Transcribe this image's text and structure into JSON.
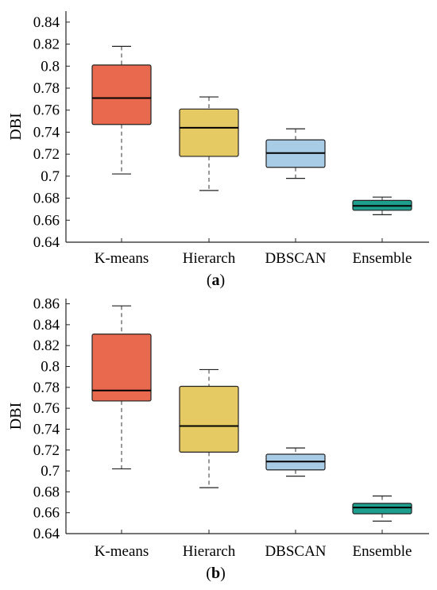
{
  "chart_data": [
    {
      "type": "box",
      "caption_letter": "a",
      "ylabel": "DBI",
      "ylim": [
        0.64,
        0.85
      ],
      "yticks": [
        0.64,
        0.66,
        0.68,
        0.7,
        0.72,
        0.74,
        0.76,
        0.78,
        0.8,
        0.82,
        0.84
      ],
      "categories": [
        "K-means",
        "Hierarch",
        "DBSCAN",
        "Ensemble"
      ],
      "boxes": [
        {
          "label": "K-means",
          "whisker_low": 0.702,
          "q1": 0.747,
          "median": 0.771,
          "q3": 0.801,
          "whisker_high": 0.818,
          "color": "#E8694E"
        },
        {
          "label": "Hierarch",
          "whisker_low": 0.687,
          "q1": 0.718,
          "median": 0.744,
          "q3": 0.761,
          "whisker_high": 0.772,
          "color": "#E5CA64"
        },
        {
          "label": "DBSCAN",
          "whisker_low": 0.698,
          "q1": 0.708,
          "median": 0.721,
          "q3": 0.733,
          "whisker_high": 0.743,
          "color": "#A8CCE6"
        },
        {
          "label": "Ensemble",
          "whisker_low": 0.665,
          "q1": 0.669,
          "median": 0.673,
          "q3": 0.678,
          "whisker_high": 0.681,
          "color": "#1E9E8C"
        }
      ]
    },
    {
      "type": "box",
      "caption_letter": "b",
      "ylabel": "DBI",
      "ylim": [
        0.64,
        0.865
      ],
      "yticks": [
        0.64,
        0.66,
        0.68,
        0.7,
        0.72,
        0.74,
        0.76,
        0.78,
        0.8,
        0.82,
        0.84,
        0.86
      ],
      "categories": [
        "K-means",
        "Hierarch",
        "DBSCAN",
        "Ensemble"
      ],
      "boxes": [
        {
          "label": "K-means",
          "whisker_low": 0.702,
          "q1": 0.767,
          "median": 0.777,
          "q3": 0.831,
          "whisker_high": 0.858,
          "color": "#E8694E"
        },
        {
          "label": "Hierarch",
          "whisker_low": 0.684,
          "q1": 0.718,
          "median": 0.743,
          "q3": 0.781,
          "whisker_high": 0.797,
          "color": "#E5CA64"
        },
        {
          "label": "DBSCAN",
          "whisker_low": 0.695,
          "q1": 0.701,
          "median": 0.709,
          "q3": 0.716,
          "whisker_high": 0.722,
          "color": "#A8CCE6"
        },
        {
          "label": "Ensemble",
          "whisker_low": 0.652,
          "q1": 0.659,
          "median": 0.665,
          "q3": 0.669,
          "whisker_high": 0.676,
          "color": "#1E9E8C"
        }
      ]
    }
  ]
}
